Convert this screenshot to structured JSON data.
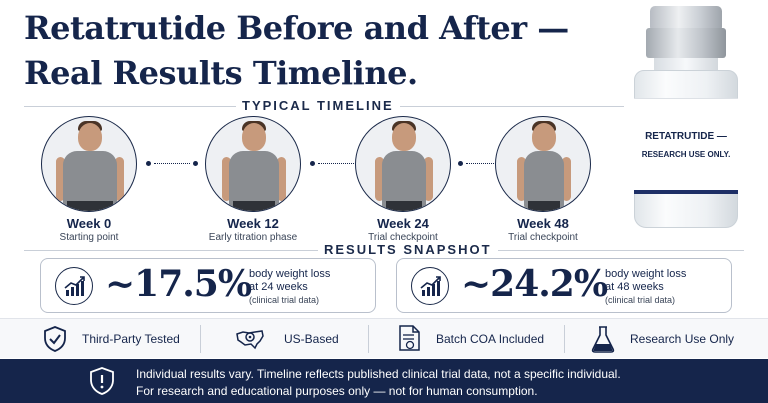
{
  "title": {
    "line1": "Retatrutide Before and After —",
    "line2": "Real Results Timeline."
  },
  "timeline": {
    "label": "TYPICAL TIMELINE",
    "stages": [
      {
        "week": "Week 0",
        "desc": "Starting point",
        "icon": "person-photo"
      },
      {
        "week": "Week 12",
        "desc": "Early titration phase",
        "icon": "person-photo"
      },
      {
        "week": "Week 24",
        "desc": "Trial checkpoint",
        "icon": "person-photo"
      },
      {
        "week": "Week 48",
        "desc": "Trial checkpoint",
        "icon": "person-photo"
      }
    ]
  },
  "vial": {
    "label_line1": "RETATRUTIDE —",
    "label_line2": "RESEARCH USE ONLY."
  },
  "snapshot": {
    "label": "RESULTS SNAPSHOT",
    "cards": [
      {
        "value": "~17.5%",
        "line1": "body weight loss",
        "line2": "at 24 weeks",
        "note": "(clinical trial data)",
        "icon": "trend-chart-icon"
      },
      {
        "value": "~24.2%",
        "line1": "body weight loss",
        "line2": "at 48 weeks",
        "note": "(clinical trial data)",
        "icon": "trend-chart-icon"
      }
    ]
  },
  "features": [
    {
      "label": "Third-Party Tested",
      "icon": "shield-check-icon"
    },
    {
      "label": "US-Based",
      "icon": "us-map-pin-icon"
    },
    {
      "label": "Batch COA Included",
      "icon": "certificate-document-icon"
    },
    {
      "label": "Research Use Only",
      "icon": "flask-icon"
    }
  ],
  "footer": {
    "line1": "Individual results vary. Timeline reflects published clinical trial data, not a specific individual.",
    "line2": "For research and educational purposes only — not for human consumption.",
    "icon": "warning-shield-icon"
  },
  "colors": {
    "navy": "#15254b",
    "shirt": "#8a8d91",
    "background": "#ffffff"
  }
}
